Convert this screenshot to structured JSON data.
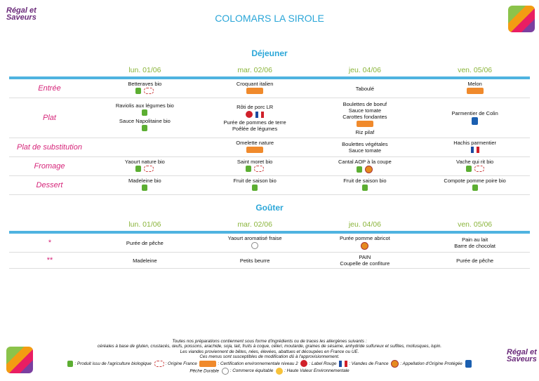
{
  "header": {
    "logo": "Régal et Saveurs",
    "title": "COLOMARS LA SIROLE"
  },
  "dejeuner": {
    "title": "Déjeuner",
    "days": [
      "lun. 01/06",
      "mar. 02/06",
      "jeu. 04/06",
      "ven. 05/06"
    ],
    "rows": [
      {
        "label": "Entrée",
        "cells": [
          [
            "Betteraves bio"
          ],
          [
            "Croquant italien"
          ],
          [
            "Taboulé"
          ],
          [
            "Melon"
          ]
        ]
      },
      {
        "label": "Plat",
        "cells": [
          [
            "Raviolis aux légumes bio",
            "Sauce Napolitaine bio"
          ],
          [
            "Rôti de porc LR",
            "Purée de pommes de terre",
            "Poêlée de légumes"
          ],
          [
            "Boulettes de boeuf",
            "Sauce tomate",
            "Carottes fondantes",
            "Riz pilaf"
          ],
          [
            "Parmentier de Colin"
          ]
        ]
      },
      {
        "label": "Plat de substitution",
        "cells": [
          [],
          [
            "Omelette nature"
          ],
          [
            "Boulettes végétales",
            "Sauce tomate"
          ],
          [
            "Hachis parmentier"
          ]
        ]
      },
      {
        "label": "Fromage",
        "cells": [
          [
            "Yaourt nature bio"
          ],
          [
            "Saint moret bio"
          ],
          [
            "Cantal AOP à la coupe"
          ],
          [
            "Vache qui rit bio"
          ]
        ]
      },
      {
        "label": "Dessert",
        "cells": [
          [
            "Madeleine bio"
          ],
          [
            "Fruit de saison bio"
          ],
          [
            "Fruit de saison bio"
          ],
          [
            "Compote pomme poire bio"
          ]
        ]
      }
    ]
  },
  "gouter": {
    "title": "Goûter",
    "days": [
      "lun. 01/06",
      "mar. 02/06",
      "jeu. 04/06",
      "ven. 05/06"
    ],
    "rows": [
      {
        "label": "*",
        "cells": [
          [
            "Purée de pêche"
          ],
          [
            "Yaourt aromatisé fraise"
          ],
          [
            "Purée pomme abricot"
          ],
          [
            "Pain au lait",
            "Barre de chocolat"
          ]
        ]
      },
      {
        "label": "**",
        "cells": [
          [
            "Madeleine"
          ],
          [
            "Petits beurre"
          ],
          [
            "PAIN",
            "Coupelle de confiture"
          ],
          [
            "Purée de pêche"
          ]
        ]
      }
    ]
  },
  "footer": {
    "notes": [
      "Toutes nos préparations contiennent sous forme d'ingrédients ou de traces les allergènes suivants :",
      "céréales à base de gluten, crustacés, œufs, poissons, arachide, soja, lait, fruits à coque, céleri, moutarde, graines de sésame, anhydride sulfureux et sulfites, mollusques, lupin.",
      "Les viandes proviennent de bêtes, nées, élevées, abattues et découpées en France ou UE.",
      "Ces menus sont susceptibles de modification dû à l'approvisionnement."
    ],
    "legend": [
      ": Produit issu de l'agriculture biologique",
      ": Origine France",
      ": Certification environnementale niveau 2",
      ": Label Rouge",
      ": Viandes de France",
      ": Appellation d'Origine Protégée",
      "Pêche Durable",
      ": Commerce équitable",
      ": Haute Valeur Environnementale"
    ]
  }
}
